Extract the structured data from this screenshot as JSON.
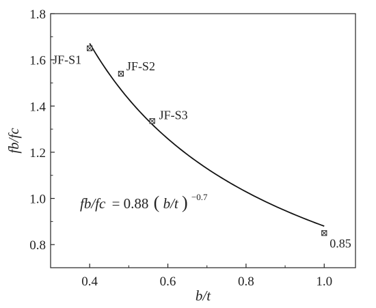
{
  "chart_data": {
    "type": "scatter",
    "xlabel": "b/t",
    "ylabel": "fb/fc",
    "xlim": [
      0.3,
      1.08
    ],
    "ylim": [
      0.7,
      1.8
    ],
    "xticks": [
      0.4,
      0.6,
      0.8,
      1.0
    ],
    "xtick_labels": [
      "0.4",
      "0.6",
      "0.8",
      "1.0"
    ],
    "yticks": [
      0.8,
      1.0,
      1.2,
      1.4,
      1.6,
      1.8
    ],
    "ytick_labels": [
      "0.8",
      "1.0",
      "1.2",
      "1.4",
      "1.6",
      "1.8"
    ],
    "grid": false,
    "points": [
      {
        "label": "JF-S1",
        "x": 0.4,
        "y": 1.65
      },
      {
        "label": "JF-S2",
        "x": 0.48,
        "y": 1.54
      },
      {
        "label": "JF-S3",
        "x": 0.56,
        "y": 1.335
      },
      {
        "label": "0.85",
        "x": 1.0,
        "y": 0.85
      }
    ],
    "fit": {
      "coef": 0.88,
      "exponent": -0.7,
      "x_range": [
        0.4,
        1.0
      ],
      "equation": {
        "lhs": "fb/fc",
        "rhs_coef": "= 0.88",
        "rhs_var": "b/t",
        "exponent_text": "−0.7"
      }
    }
  }
}
